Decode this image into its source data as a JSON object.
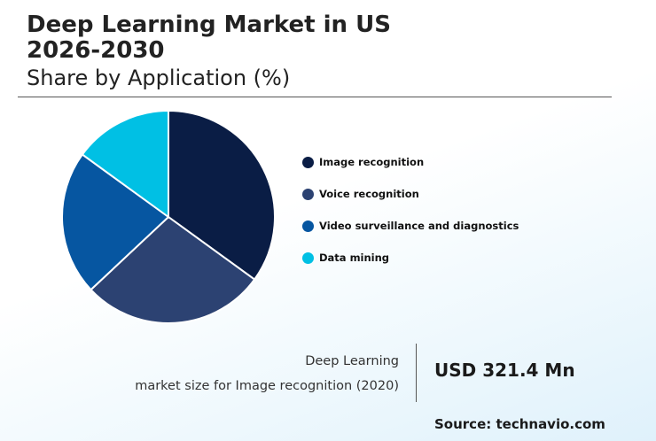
{
  "header": {
    "title_line1": "Deep Learning Market in US",
    "title_line2": "2026-2030",
    "subtitle": "Share by Application (%)"
  },
  "chart_data": {
    "type": "pie",
    "categories": [
      "Image recognition",
      "Voice recognition",
      "Video surveillance and diagnostics",
      "Data mining"
    ],
    "values": [
      35,
      28,
      22,
      15
    ],
    "colors": [
      "#0a1d45",
      "#2c4272",
      "#0656a1",
      "#00c0e4"
    ],
    "legend_position": "right"
  },
  "metric": {
    "label_line1": "Deep Learning",
    "label_line2": "market size for Image recognition (2020)",
    "value": "USD 321.4 Mn"
  },
  "source": "Source: technavio.com"
}
